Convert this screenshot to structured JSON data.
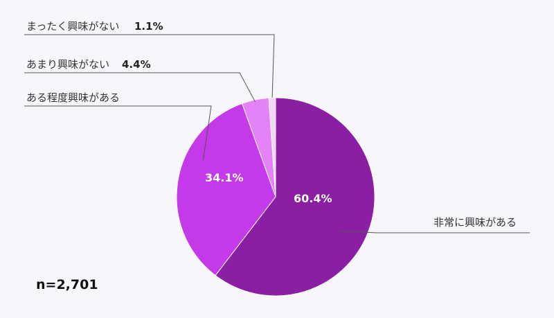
{
  "chart_data": {
    "type": "pie",
    "categories": [
      "非常に興味がある",
      "ある程度興味がある",
      "あまり興味がない",
      "まったく興味がない"
    ],
    "values": [
      60.4,
      34.1,
      4.4,
      1.1
    ],
    "value_labels": [
      "60.4%",
      "34.1%",
      "4.4%",
      "1.1%"
    ],
    "colors": [
      "#8a1fa3",
      "#c43ae8",
      "#e483f7",
      "#f2d6fa"
    ],
    "start_angle": "12 o'clock",
    "direction": "clockwise",
    "sample_size": "n=2,701"
  }
}
